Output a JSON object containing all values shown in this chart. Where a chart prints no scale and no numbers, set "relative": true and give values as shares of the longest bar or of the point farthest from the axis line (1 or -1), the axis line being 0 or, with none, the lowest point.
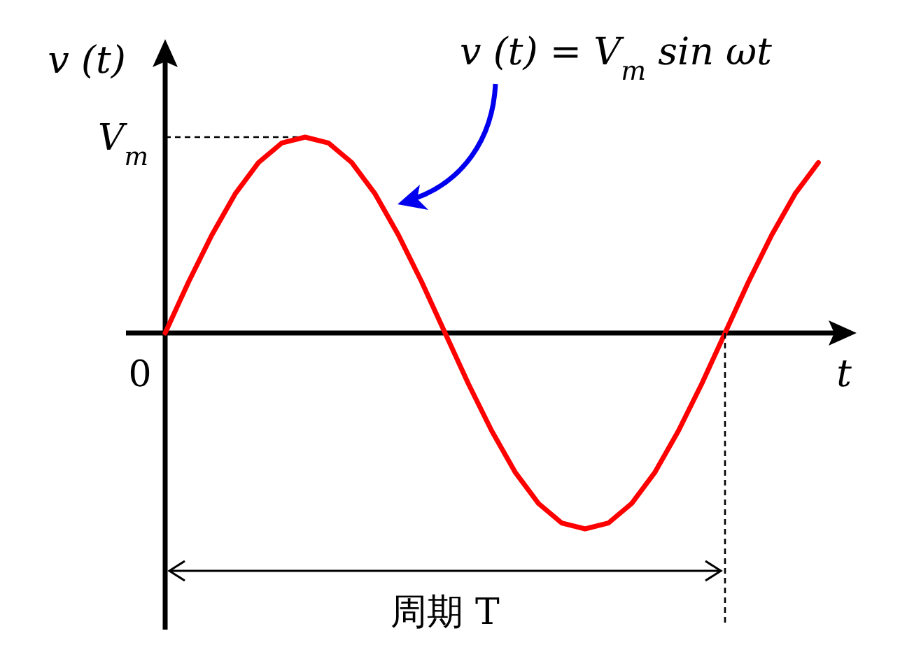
{
  "chart_data": {
    "type": "line",
    "relative": true,
    "ylabel": "v (t)",
    "xlabel": "t",
    "categories": [
      null,
      null,
      null,
      null,
      null,
      null,
      null,
      null,
      null,
      null,
      null,
      null,
      null,
      null,
      null,
      null,
      null,
      null,
      null,
      null,
      null,
      null,
      null,
      null,
      null,
      null,
      null,
      null,
      null
    ],
    "series": [
      {
        "color": "#ff0000",
        "values": [
          0,
          0.26,
          0.5,
          0.71,
          0.87,
          0.97,
          1,
          0.97,
          0.87,
          0.71,
          0.5,
          0.26,
          0,
          -0.26,
          -0.5,
          -0.71,
          -0.87,
          -0.97,
          -1,
          -0.97,
          -0.87,
          -0.71,
          -0.5,
          -0.26,
          0,
          0.26,
          0.5,
          0.71,
          0.87
        ]
      }
    ],
    "annotations": [
      "v (t) = V$_{m}$ sin ωt",
      "V$_{m}$",
      "0",
      "周期 T"
    ]
  }
}
